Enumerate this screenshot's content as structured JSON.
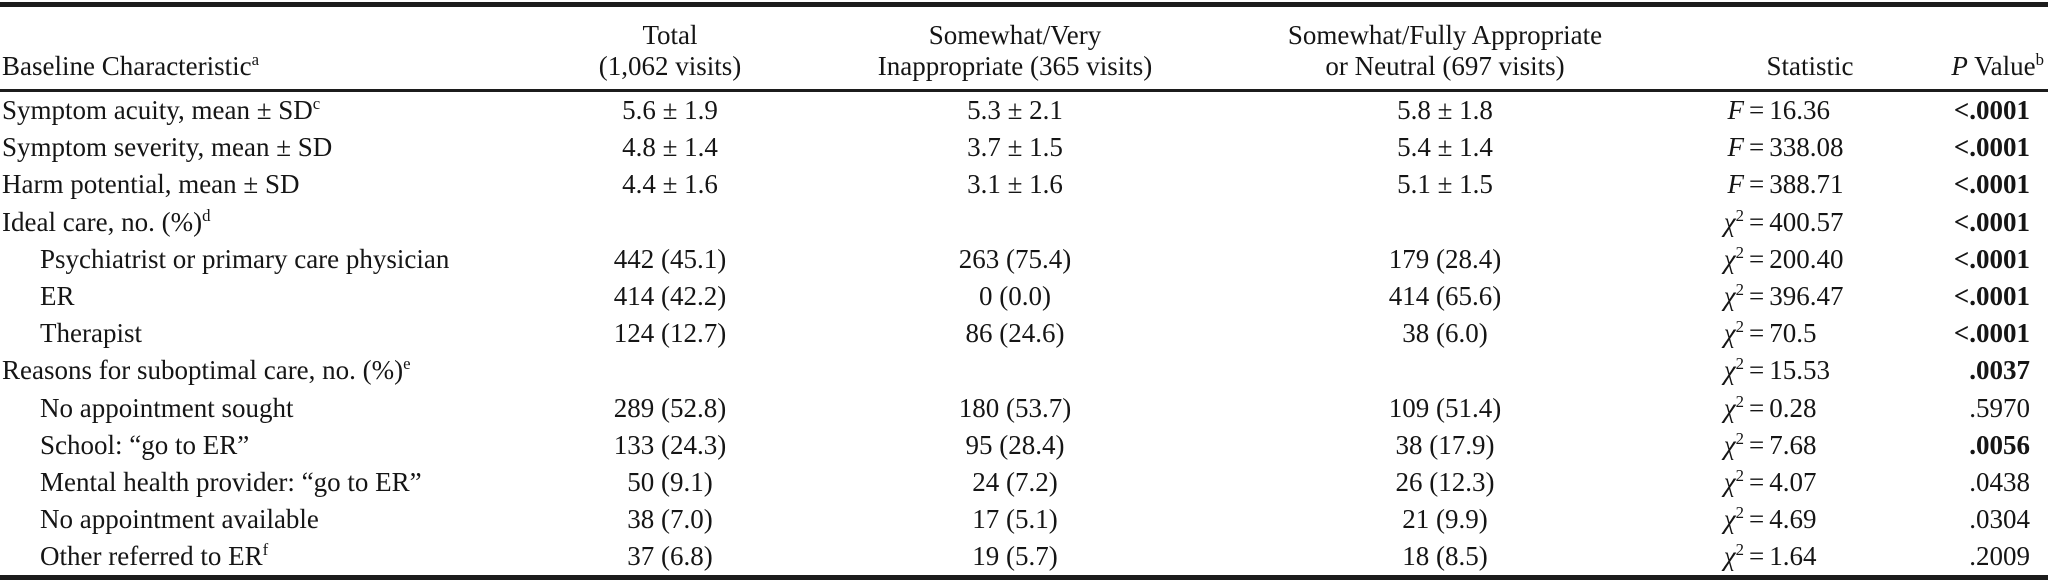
{
  "accent_color": "#1c1c1c",
  "background_color": "#ffffff",
  "table": {
    "header": {
      "col1": {
        "label": "Baseline Characteristic",
        "sup": "a"
      },
      "col2": {
        "line1": "Total",
        "line2": "(1,062 visits)"
      },
      "col3": {
        "line1": "Somewhat/Very",
        "line2": "Inappropriate (365 visits)"
      },
      "col4": {
        "line1": "Somewhat/Fully Appropriate",
        "line2": "or Neutral (697 visits)"
      },
      "col5": {
        "label": "Statistic"
      },
      "col6": {
        "prefix": "P",
        "label": " Value",
        "sup": "b"
      }
    },
    "rows": [
      {
        "label": "Symptom acuity, mean ± SD",
        "sup": "c",
        "indent": false,
        "total": "5.6 ± 1.9",
        "inappropriate": "5.3 ± 2.1",
        "appropriate": "5.8 ± 1.8",
        "stat_symbol": "F",
        "stat_sup": "",
        "stat_value": "16.36",
        "p": "<.0001",
        "p_bold": true
      },
      {
        "label": "Symptom severity, mean ± SD",
        "sup": "",
        "indent": false,
        "total": "4.8 ± 1.4",
        "inappropriate": "3.7 ± 1.5",
        "appropriate": "5.4 ± 1.4",
        "stat_symbol": "F",
        "stat_sup": "",
        "stat_value": "338.08",
        "p": "<.0001",
        "p_bold": true
      },
      {
        "label": "Harm potential, mean ± SD",
        "sup": "",
        "indent": false,
        "total": "4.4 ± 1.6",
        "inappropriate": "3.1 ± 1.6",
        "appropriate": "5.1 ± 1.5",
        "stat_symbol": "F",
        "stat_sup": "",
        "stat_value": "388.71",
        "p": "<.0001",
        "p_bold": true
      },
      {
        "label": "Ideal care, no. (%)",
        "sup": "d",
        "indent": false,
        "total": "",
        "inappropriate": "",
        "appropriate": "",
        "stat_symbol": "χ",
        "stat_sup": "2",
        "stat_value": "400.57",
        "p": "<.0001",
        "p_bold": true
      },
      {
        "label": "Psychiatrist or primary care physician",
        "sup": "",
        "indent": true,
        "total": "442 (45.1)",
        "inappropriate": "263 (75.4)",
        "appropriate": "179 (28.4)",
        "stat_symbol": "χ",
        "stat_sup": "2",
        "stat_value": "200.40",
        "p": "<.0001",
        "p_bold": true
      },
      {
        "label": "ER",
        "sup": "",
        "indent": true,
        "total": "414 (42.2)",
        "inappropriate": "0 (0.0)",
        "appropriate": "414 (65.6)",
        "stat_symbol": "χ",
        "stat_sup": "2",
        "stat_value": "396.47",
        "p": "<.0001",
        "p_bold": true
      },
      {
        "label": "Therapist",
        "sup": "",
        "indent": true,
        "total": "124 (12.7)",
        "inappropriate": "86 (24.6)",
        "appropriate": "38 (6.0)",
        "stat_symbol": "χ",
        "stat_sup": "2",
        "stat_value": "70.5",
        "p": "<.0001",
        "p_bold": true
      },
      {
        "label": "Reasons for suboptimal care, no. (%)",
        "sup": "e",
        "indent": false,
        "total": "",
        "inappropriate": "",
        "appropriate": "",
        "stat_symbol": "χ",
        "stat_sup": "2",
        "stat_value": "15.53",
        "p": ".0037",
        "p_bold": true
      },
      {
        "label": "No appointment sought",
        "sup": "",
        "indent": true,
        "total": "289 (52.8)",
        "inappropriate": "180 (53.7)",
        "appropriate": "109 (51.4)",
        "stat_symbol": "χ",
        "stat_sup": "2",
        "stat_value": "0.28",
        "p": ".5970",
        "p_bold": false
      },
      {
        "label": "School: “go to ER”",
        "sup": "",
        "indent": true,
        "total": "133 (24.3)",
        "inappropriate": "95 (28.4)",
        "appropriate": "38 (17.9)",
        "stat_symbol": "χ",
        "stat_sup": "2",
        "stat_value": "7.68",
        "p": ".0056",
        "p_bold": true
      },
      {
        "label": "Mental health provider: “go to ER”",
        "sup": "",
        "indent": true,
        "total": "50 (9.1)",
        "inappropriate": "24 (7.2)",
        "appropriate": "26 (12.3)",
        "stat_symbol": "χ",
        "stat_sup": "2",
        "stat_value": "4.07",
        "p": ".0438",
        "p_bold": false
      },
      {
        "label": "No appointment available",
        "sup": "",
        "indent": true,
        "total": "38 (7.0)",
        "inappropriate": "17 (5.1)",
        "appropriate": "21 (9.9)",
        "stat_symbol": "χ",
        "stat_sup": "2",
        "stat_value": "4.69",
        "p": ".0304",
        "p_bold": false
      },
      {
        "label": "Other referred to ER",
        "sup": "f",
        "indent": true,
        "total": "37 (6.8)",
        "inappropriate": "19 (5.7)",
        "appropriate": "18 (8.5)",
        "stat_symbol": "χ",
        "stat_sup": "2",
        "stat_value": "1.64",
        "p": ".2009",
        "p_bold": false
      }
    ]
  }
}
